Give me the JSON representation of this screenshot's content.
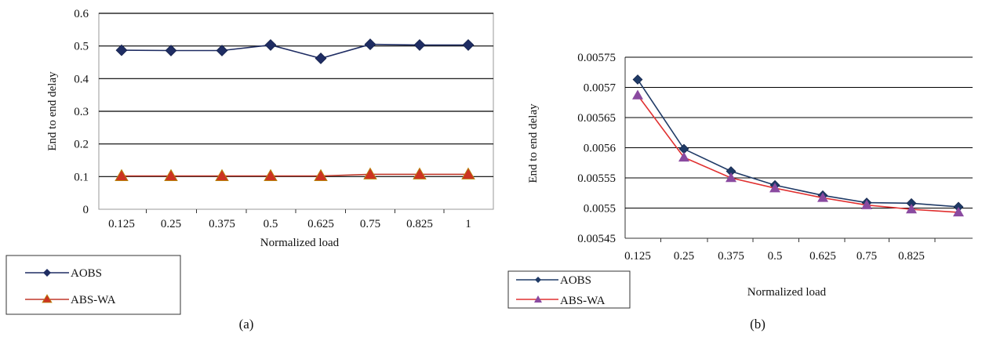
{
  "chart_data": [
    {
      "type": "line",
      "caption": "(a)",
      "xlabel": "Normalized load",
      "ylabel": "End to end delay",
      "categories": [
        "0.125",
        "0.25",
        "0.375",
        "0.5",
        "0.625",
        "0.75",
        "0.825",
        "1"
      ],
      "yticks": [
        "0",
        "0.1",
        "0.2",
        "0.3",
        "0.4",
        "0.5",
        "0.6"
      ],
      "ylim": [
        0,
        0.6
      ],
      "grid": "horizontal",
      "legend_position": "bottom-left",
      "series": [
        {
          "name": "AOBS",
          "values": [
            0.487,
            0.486,
            0.486,
            0.503,
            0.462,
            0.505,
            0.503,
            0.503
          ],
          "color": "#1f2d63",
          "marker": "diamond"
        },
        {
          "name": "ABS-WA",
          "values": [
            0.102,
            0.102,
            0.102,
            0.102,
            0.102,
            0.107,
            0.107,
            0.107
          ],
          "color": "#c0392b",
          "marker": "triangle",
          "marker_color": "#cc3322"
        }
      ]
    },
    {
      "type": "line",
      "caption": "(b)",
      "xlabel": "Normalized load",
      "ylabel": "End to end delay",
      "categories": [
        "0.125",
        "0.25",
        "0.375",
        "0.5",
        "0.625",
        "0.75",
        "0.825",
        ""
      ],
      "yticks": [
        "0.00545",
        "0.0055",
        "0.00555",
        "0.0056",
        "0.00565",
        "0.0057",
        "0.00575"
      ],
      "ylim": [
        0.00545,
        0.00575
      ],
      "grid": "horizontal",
      "legend_position": "bottom-left",
      "series": [
        {
          "name": "AOBS",
          "values": [
            0.005713,
            0.005598,
            0.005561,
            0.005538,
            0.005521,
            0.005509,
            0.005508,
            0.005502
          ],
          "color": "#1f3a66",
          "marker": "diamond"
        },
        {
          "name": "ABS-WA",
          "values": [
            0.005687,
            0.005584,
            0.00555,
            0.005533,
            0.005517,
            0.005505,
            0.005498,
            0.005493
          ],
          "color": "#e03030",
          "marker": "triangle",
          "marker_color": "#8a4aa0"
        }
      ]
    }
  ]
}
